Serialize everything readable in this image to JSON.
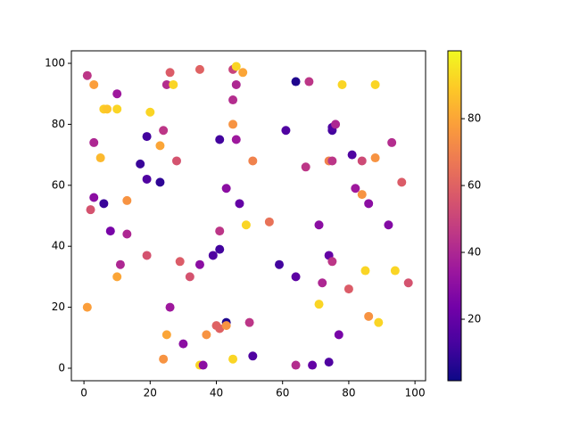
{
  "chart_data": {
    "type": "scatter",
    "x": [
      1,
      3,
      10,
      26,
      25,
      27,
      35,
      45,
      46,
      48,
      46,
      45,
      64,
      68,
      78,
      88,
      6,
      7,
      10,
      20,
      24,
      19,
      3,
      41,
      46,
      45,
      61,
      75,
      75,
      76,
      93,
      81,
      84,
      88,
      74,
      75,
      67,
      51,
      5,
      23,
      28,
      17,
      19,
      23,
      43,
      47,
      3,
      6,
      2,
      13,
      96,
      82,
      84,
      86,
      92,
      56,
      49,
      71,
      41,
      8,
      13,
      41,
      39,
      19,
      29,
      35,
      11,
      59,
      74,
      75,
      85,
      94,
      10,
      32,
      64,
      72,
      80,
      98,
      1,
      26,
      71,
      50,
      43,
      40,
      41,
      43,
      86,
      89,
      25,
      37,
      77,
      30,
      24,
      45,
      51,
      35,
      36,
      64,
      69,
      74
    ],
    "y": [
      96,
      93,
      90,
      97,
      93,
      93,
      98,
      98,
      99,
      97,
      93,
      88,
      94,
      94,
      93,
      93,
      85,
      85,
      85,
      84,
      78,
      76,
      74,
      75,
      75,
      80,
      78,
      78,
      79,
      80,
      74,
      70,
      68,
      69,
      68,
      68,
      66,
      68,
      69,
      73,
      68,
      67,
      62,
      61,
      59,
      54,
      56,
      54,
      52,
      55,
      61,
      59,
      57,
      54,
      47,
      48,
      47,
      47,
      45,
      45,
      44,
      39,
      37,
      37,
      35,
      34,
      34,
      34,
      37,
      35,
      32,
      32,
      30,
      30,
      30,
      28,
      26,
      28,
      20,
      20,
      21,
      15,
      15,
      14,
      13,
      14,
      17,
      15,
      11,
      11,
      11,
      8,
      3,
      3,
      4,
      1,
      1,
      1,
      1,
      2
    ],
    "c": [
      45,
      78,
      35,
      58,
      42,
      92,
      60,
      50,
      92,
      80,
      40,
      42,
      5,
      45,
      92,
      92,
      90,
      88,
      92,
      92,
      45,
      12,
      40,
      12,
      35,
      75,
      15,
      12,
      15,
      40,
      42,
      15,
      52,
      75,
      70,
      45,
      45,
      70,
      85,
      80,
      55,
      10,
      15,
      8,
      30,
      20,
      30,
      10,
      55,
      75,
      58,
      35,
      75,
      30,
      28,
      65,
      92,
      30,
      45,
      25,
      40,
      12,
      15,
      55,
      58,
      30,
      40,
      12,
      20,
      45,
      92,
      92,
      80,
      55,
      18,
      40,
      58,
      55,
      78,
      35,
      92,
      45,
      5,
      60,
      60,
      75,
      75,
      92,
      80,
      75,
      25,
      30,
      75,
      92,
      15,
      92,
      30,
      42,
      20,
      15
    ],
    "xlim": [
      -3.8,
      103.2
    ],
    "ylim": [
      -4.1,
      104.1
    ],
    "xticks": [
      0,
      20,
      40,
      60,
      80,
      100
    ],
    "yticks": [
      0,
      20,
      40,
      60,
      80,
      100
    ],
    "clim": [
      1.6,
      100.3
    ],
    "cticks": [
      20,
      40,
      60,
      80
    ],
    "cmap_colors": [
      "#0d0887",
      "#46039f",
      "#7201a8",
      "#9c179e",
      "#bd3786",
      "#d8576b",
      "#ed7953",
      "#fb9f3a",
      "#fdca26",
      "#f0f921"
    ],
    "grid": false
  }
}
